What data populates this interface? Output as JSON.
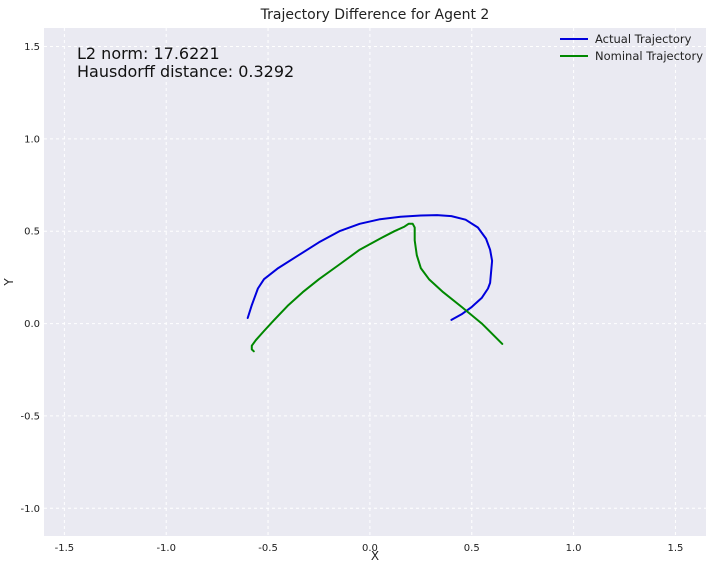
{
  "chart_data": {
    "type": "line",
    "title": "Trajectory Difference for Agent 2",
    "xlabel": "X",
    "ylabel": "Y",
    "xlim": [
      -1.6,
      1.65
    ],
    "ylim": [
      -1.15,
      1.6
    ],
    "xticks": [
      "-1.5",
      "-1.0",
      "-0.5",
      "0.0",
      "0.5",
      "1.0",
      "1.5"
    ],
    "yticks": [
      "-1.0",
      "-0.5",
      "0.0",
      "0.5",
      "1.0",
      "1.5"
    ],
    "grid": true,
    "legend_position": "top-right",
    "annotations": [
      "L2 norm: 17.6221",
      "Hausdorff distance: 0.3292"
    ],
    "series": [
      {
        "name": "Actual Trajectory",
        "color": "#0000dd",
        "x": [
          -0.6,
          -0.58,
          -0.55,
          -0.52,
          -0.45,
          -0.35,
          -0.25,
          -0.15,
          -0.05,
          0.05,
          0.15,
          0.25,
          0.33,
          0.4,
          0.47,
          0.53,
          0.57,
          0.59,
          0.6,
          0.59,
          0.58,
          0.55,
          0.5,
          0.45,
          0.4
        ],
        "y": [
          0.03,
          0.1,
          0.19,
          0.24,
          0.3,
          0.37,
          0.44,
          0.5,
          0.54,
          0.565,
          0.578,
          0.585,
          0.587,
          0.582,
          0.562,
          0.52,
          0.46,
          0.4,
          0.34,
          0.22,
          0.19,
          0.14,
          0.09,
          0.05,
          0.02
        ]
      },
      {
        "name": "Nominal Trajectory",
        "color": "#008800",
        "x": [
          -0.57,
          -0.58,
          -0.58,
          -0.56,
          -0.52,
          -0.47,
          -0.4,
          -0.33,
          -0.25,
          -0.15,
          -0.05,
          0.05,
          0.12,
          0.17,
          0.19,
          0.21,
          0.22,
          0.22,
          0.23,
          0.25,
          0.29,
          0.36,
          0.45,
          0.55,
          0.65
        ],
        "y": [
          -0.15,
          -0.14,
          -0.12,
          -0.09,
          -0.04,
          0.02,
          0.1,
          0.17,
          0.24,
          0.32,
          0.4,
          0.46,
          0.5,
          0.525,
          0.54,
          0.54,
          0.52,
          0.45,
          0.37,
          0.3,
          0.24,
          0.17,
          0.09,
          0.0,
          -0.11
        ]
      }
    ]
  }
}
